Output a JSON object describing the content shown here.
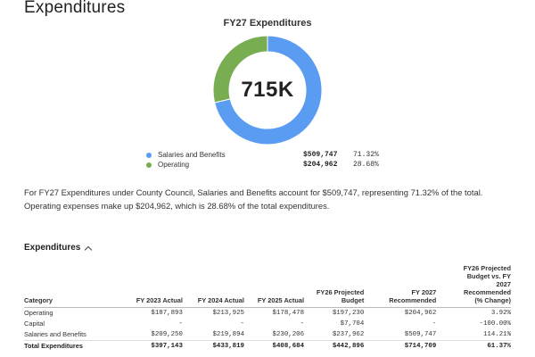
{
  "page": {
    "title": "Expenditures"
  },
  "chart_data": {
    "type": "pie",
    "title": "FY27 Expenditures",
    "center_label": "715K",
    "slices": [
      {
        "name": "Salaries and Benefits",
        "value": 509747,
        "value_label": "$509,747",
        "percent_label": "71.32%",
        "percent": 71.32,
        "color": "#5b9cf3"
      },
      {
        "name": "Operating",
        "value": 204962,
        "value_label": "$204,962",
        "percent_label": "28.68%",
        "percent": 28.68,
        "color": "#79ad52"
      }
    ]
  },
  "summary": {
    "text": "For FY27 Expenditures under County Council, Salaries and Benefits account for $509,747, representing 71.32% of the total. Operating expenses make up $204,962, which is 28.68% of the total expenditures."
  },
  "table": {
    "section_label": "Expenditures",
    "headers": {
      "category": "Category",
      "fy2023": "FY 2023 Actual",
      "fy2024": "FY 2024 Actual",
      "fy2025": "FY 2025 Actual",
      "fy26": "FY26 Projected Budget",
      "fy2027": "FY 2027 Recommended",
      "change": "FY26 Projected Budget vs. FY 2027 Recommended (% Change)"
    },
    "rows": [
      {
        "category": "Operating",
        "fy2023": "$187,893",
        "fy2024": "$213,925",
        "fy2025": "$178,478",
        "fy26": "$197,230",
        "fy2027": "$204,962",
        "change": "3.92%"
      },
      {
        "category": "Capital",
        "fy2023": "-",
        "fy2024": "-",
        "fy2025": "-",
        "fy26": "$7,704",
        "fy2027": "-",
        "change": "-100.00%"
      },
      {
        "category": "Salaries and Benefits",
        "fy2023": "$209,250",
        "fy2024": "$219,894",
        "fy2025": "$230,206",
        "fy26": "$237,962",
        "fy2027": "$509,747",
        "change": "114.21%"
      }
    ],
    "total": {
      "category": "Total Expenditures",
      "fy2023": "$397,143",
      "fy2024": "$433,819",
      "fy2025": "$408,684",
      "fy26": "$442,896",
      "fy2027": "$714,709",
      "change": "61.37%"
    }
  }
}
